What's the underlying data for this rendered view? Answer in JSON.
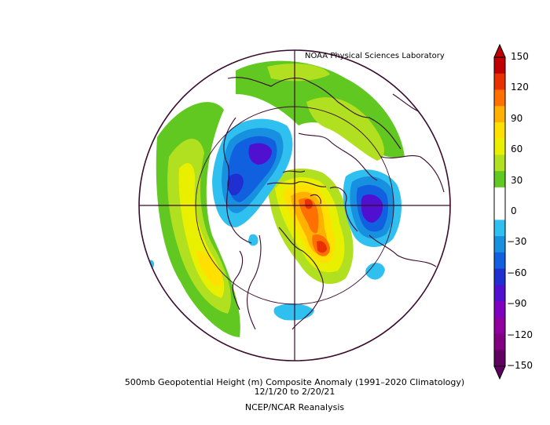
{
  "map": {
    "credit": "NOAA Physical Sciences Laboratory",
    "caption_line1": "500mb Geopotential Height (m) Composite Anomaly (1991–2020 Climatology)",
    "caption_line2": "12/1/20   to 2/20/21",
    "caption_line3": "NCEP/NCAR Reanalysis",
    "projection": "north-polar-stereographic",
    "colorbar": {
      "ticks": [
        "150",
        "120",
        "90",
        "60",
        "30",
        "0",
        "−30",
        "−60",
        "−90",
        "−120",
        "−150"
      ],
      "colors": [
        "#c00000",
        "#e83000",
        "#ff7000",
        "#ffb000",
        "#ffe000",
        "#e8f000",
        "#b0e020",
        "#60c820",
        "#ffffff",
        "#ffffff",
        "#30c0f0",
        "#1890e0",
        "#1060e0",
        "#2030d0",
        "#5010d0",
        "#8000c0",
        "#9000a0",
        "#800080",
        "#600060"
      ]
    }
  }
}
